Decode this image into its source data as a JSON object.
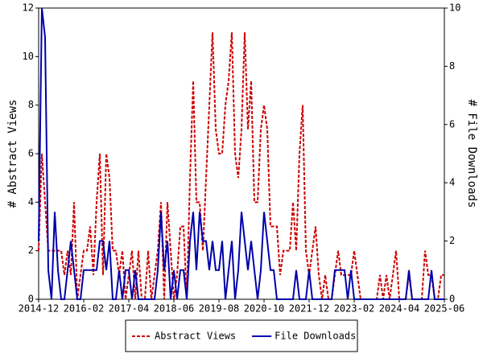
{
  "chart_data": {
    "type": "line",
    "y_label": "# Abstract Views",
    "y2_label": "# File Downloads",
    "categories": [
      "2014-12",
      null,
      null,
      null,
      null,
      null,
      null,
      null,
      null,
      null,
      null,
      null,
      null,
      null,
      "2016-02",
      null,
      null,
      null,
      null,
      null,
      null,
      null,
      null,
      null,
      null,
      null,
      null,
      null,
      "2017-04",
      null,
      null,
      null,
      null,
      null,
      null,
      null,
      null,
      null,
      null,
      null,
      null,
      null,
      "2018-06",
      null,
      null,
      null,
      null,
      null,
      null,
      null,
      null,
      null,
      null,
      null,
      null,
      null,
      "2019-08",
      null,
      null,
      null,
      null,
      null,
      null,
      null,
      null,
      null,
      null,
      null,
      null,
      null,
      "2020-10",
      null,
      null,
      null,
      null,
      null,
      null,
      null,
      null,
      null,
      null,
      null,
      null,
      null,
      "2021-12",
      null,
      null,
      null,
      null,
      null,
      null,
      null,
      null,
      null,
      null,
      null,
      null,
      null,
      "2023-02",
      null,
      null,
      null,
      null,
      null,
      null,
      null,
      null,
      null,
      null,
      null,
      null,
      null,
      "2024-04",
      null,
      null,
      null,
      null,
      null,
      null,
      null,
      null,
      null,
      null,
      null,
      null,
      null,
      "2025-06"
    ],
    "series": [
      {
        "name": "Abstract Views",
        "color": "#cc0000",
        "dashed": true,
        "axis": "y",
        "values": [
          2,
          6,
          4,
          2,
          2,
          2,
          2,
          2,
          1,
          2,
          1,
          4,
          0,
          1,
          2,
          2,
          3,
          1,
          4,
          6,
          1,
          6,
          5,
          2,
          2,
          1,
          2,
          0,
          1,
          2,
          0,
          2,
          0,
          0,
          2,
          0,
          1,
          2,
          4,
          0,
          4,
          2,
          0,
          1,
          3,
          3,
          0,
          5,
          9,
          4,
          4,
          2,
          5,
          8,
          11,
          7,
          6,
          6,
          8,
          9,
          11,
          6,
          5,
          7,
          11,
          7,
          9,
          4,
          4,
          7,
          8,
          7,
          3,
          3,
          3,
          1,
          2,
          2,
          2,
          4,
          2,
          6,
          8,
          2,
          1,
          2,
          3,
          1,
          0,
          1,
          0,
          0,
          1,
          2,
          1,
          1,
          1,
          1,
          2,
          1,
          0,
          0,
          0,
          0,
          0,
          0,
          1,
          0,
          1,
          0,
          1,
          2,
          0,
          0,
          0,
          1,
          0,
          0,
          0,
          0,
          2,
          1,
          1,
          0,
          0,
          1,
          1
        ]
      },
      {
        "name": "File Downloads",
        "color": "#0000aa",
        "dashed": false,
        "axis": "y2",
        "values": [
          2,
          10,
          9,
          1,
          0,
          3,
          1,
          0,
          0,
          1,
          2,
          1,
          0,
          0,
          1,
          1,
          1,
          1,
          1,
          2,
          2,
          1,
          2,
          0,
          0,
          1,
          0,
          1,
          1,
          0,
          1,
          0,
          0,
          0,
          0,
          0,
          0,
          1,
          3,
          1,
          2,
          0,
          1,
          0,
          1,
          1,
          0,
          2,
          3,
          1,
          3,
          2,
          2,
          1,
          2,
          1,
          1,
          2,
          0,
          1,
          2,
          0,
          1,
          3,
          2,
          1,
          2,
          1,
          0,
          1,
          3,
          2,
          1,
          1,
          0,
          0,
          0,
          0,
          0,
          0,
          1,
          0,
          0,
          0,
          1,
          0,
          0,
          0,
          0,
          0,
          0,
          0,
          1,
          1,
          1,
          1,
          0,
          1,
          0,
          0,
          0,
          0,
          0,
          0,
          0,
          0,
          0,
          0,
          0,
          0,
          0,
          0,
          0,
          0,
          0,
          1,
          0,
          0,
          0,
          0,
          0,
          0,
          1,
          0,
          0,
          0,
          0
        ]
      }
    ],
    "ylim": [
      0,
      12
    ],
    "yticks": [
      0,
      2,
      4,
      6,
      8,
      10,
      12
    ],
    "y2lim": [
      0,
      10
    ],
    "y2ticks": [
      0,
      2,
      4,
      6,
      8,
      10
    ],
    "legend": "bottom"
  }
}
